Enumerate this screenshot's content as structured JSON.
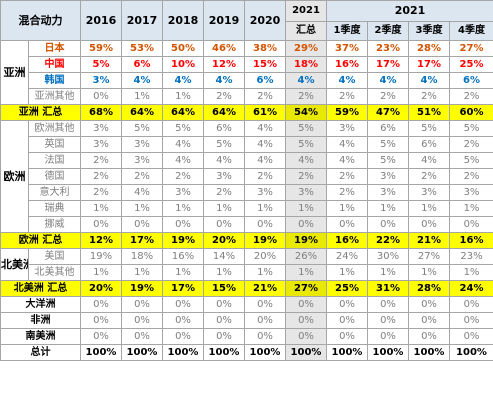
{
  "header": {
    "corner": "混合动力",
    "years": [
      "2016",
      "2017",
      "2018",
      "2019",
      "2020"
    ],
    "y2021": "2021",
    "y2021_sub": "汇总",
    "quarter_group": "2021",
    "quarters": [
      "1季度",
      "2季度",
      "3季度",
      "4季度"
    ]
  },
  "asia": {
    "label": "亚洲",
    "rows": [
      {
        "name": "日本",
        "values": [
          "59%",
          "53%",
          "50%",
          "46%",
          "38%",
          "29%",
          "37%",
          "23%",
          "28%",
          "27%"
        ]
      },
      {
        "name": "中国",
        "values": [
          "5%",
          "6%",
          "10%",
          "12%",
          "15%",
          "18%",
          "16%",
          "17%",
          "17%",
          "25%"
        ]
      },
      {
        "name": "韩国",
        "values": [
          "3%",
          "4%",
          "4%",
          "4%",
          "6%",
          "4%",
          "4%",
          "4%",
          "4%",
          "6%"
        ]
      },
      {
        "name": "亚洲其他",
        "values": [
          "0%",
          "1%",
          "1%",
          "2%",
          "2%",
          "2%",
          "2%",
          "2%",
          "2%",
          "2%"
        ]
      }
    ],
    "total": {
      "label": "亚洲 汇总",
      "values": [
        "68%",
        "64%",
        "64%",
        "64%",
        "61%",
        "54%",
        "59%",
        "47%",
        "51%",
        "60%"
      ]
    }
  },
  "europe": {
    "label": "欧洲",
    "rows": [
      {
        "name": "欧洲其他",
        "values": [
          "3%",
          "5%",
          "5%",
          "6%",
          "4%",
          "5%",
          "3%",
          "6%",
          "5%",
          "5%"
        ]
      },
      {
        "name": "英国",
        "values": [
          "3%",
          "3%",
          "4%",
          "5%",
          "4%",
          "5%",
          "4%",
          "5%",
          "6%",
          "2%"
        ]
      },
      {
        "name": "法国",
        "values": [
          "2%",
          "3%",
          "4%",
          "4%",
          "4%",
          "4%",
          "4%",
          "5%",
          "4%",
          "5%"
        ]
      },
      {
        "name": "德国",
        "values": [
          "2%",
          "2%",
          "2%",
          "3%",
          "2%",
          "2%",
          "2%",
          "3%",
          "2%",
          "2%"
        ]
      },
      {
        "name": "意大利",
        "values": [
          "2%",
          "4%",
          "3%",
          "2%",
          "3%",
          "3%",
          "2%",
          "3%",
          "3%",
          "3%"
        ]
      },
      {
        "name": "瑞典",
        "values": [
          "1%",
          "1%",
          "1%",
          "1%",
          "1%",
          "1%",
          "1%",
          "1%",
          "1%",
          "1%"
        ]
      },
      {
        "name": "挪威",
        "values": [
          "0%",
          "0%",
          "0%",
          "0%",
          "0%",
          "0%",
          "0%",
          "0%",
          "0%",
          "0%"
        ]
      }
    ],
    "total": {
      "label": "欧洲 汇总",
      "values": [
        "12%",
        "17%",
        "19%",
        "20%",
        "19%",
        "19%",
        "16%",
        "22%",
        "21%",
        "16%"
      ]
    }
  },
  "north_america": {
    "label": "北美洲",
    "rows": [
      {
        "name": "美国",
        "values": [
          "19%",
          "18%",
          "16%",
          "14%",
          "20%",
          "26%",
          "24%",
          "30%",
          "27%",
          "23%"
        ]
      },
      {
        "name": "北美其他",
        "values": [
          "1%",
          "1%",
          "1%",
          "1%",
          "1%",
          "1%",
          "1%",
          "1%",
          "1%",
          "1%"
        ]
      }
    ],
    "total": {
      "label": "北美洲 汇总",
      "values": [
        "20%",
        "19%",
        "17%",
        "15%",
        "21%",
        "27%",
        "25%",
        "31%",
        "28%",
        "24%"
      ]
    }
  },
  "others": [
    {
      "name": "大洋洲",
      "values": [
        "0%",
        "0%",
        "0%",
        "0%",
        "0%",
        "0%",
        "0%",
        "0%",
        "0%",
        "0%"
      ]
    },
    {
      "name": "非洲",
      "values": [
        "0%",
        "0%",
        "0%",
        "0%",
        "0%",
        "0%",
        "0%",
        "0%",
        "0%",
        "0%"
      ]
    },
    {
      "name": "南美洲",
      "values": [
        "0%",
        "0%",
        "0%",
        "0%",
        "0%",
        "0%",
        "0%",
        "0%",
        "0%",
        "0%"
      ]
    }
  ],
  "grand_total": {
    "label": "总计",
    "values": [
      "100%",
      "100%",
      "100%",
      "100%",
      "100%",
      "100%",
      "100%",
      "100%",
      "100%",
      "100%"
    ]
  }
}
